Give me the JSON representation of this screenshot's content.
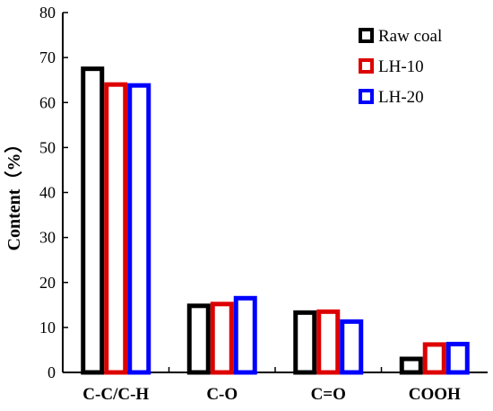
{
  "chart_data": {
    "type": "bar",
    "title": "",
    "xlabel": "",
    "ylabel": "Content（%）",
    "ylim": [
      0,
      80
    ],
    "yticks": [
      0,
      10,
      20,
      30,
      40,
      50,
      60,
      70,
      80
    ],
    "categories": [
      "C-C/C-H",
      "C-O",
      "C=O",
      "COOH"
    ],
    "series": [
      {
        "name": "Raw coal",
        "color": "#000000",
        "values": [
          68,
          15.3,
          13.8,
          3.5
        ]
      },
      {
        "name": "LH-10",
        "color": "#dd0000",
        "values": [
          64.5,
          15.7,
          14.0,
          6.7
        ]
      },
      {
        "name": "LH-20",
        "color": "#0000ff",
        "values": [
          64.3,
          17.0,
          11.8,
          6.8
        ]
      }
    ],
    "legend_position": "top-right",
    "grid": false
  }
}
